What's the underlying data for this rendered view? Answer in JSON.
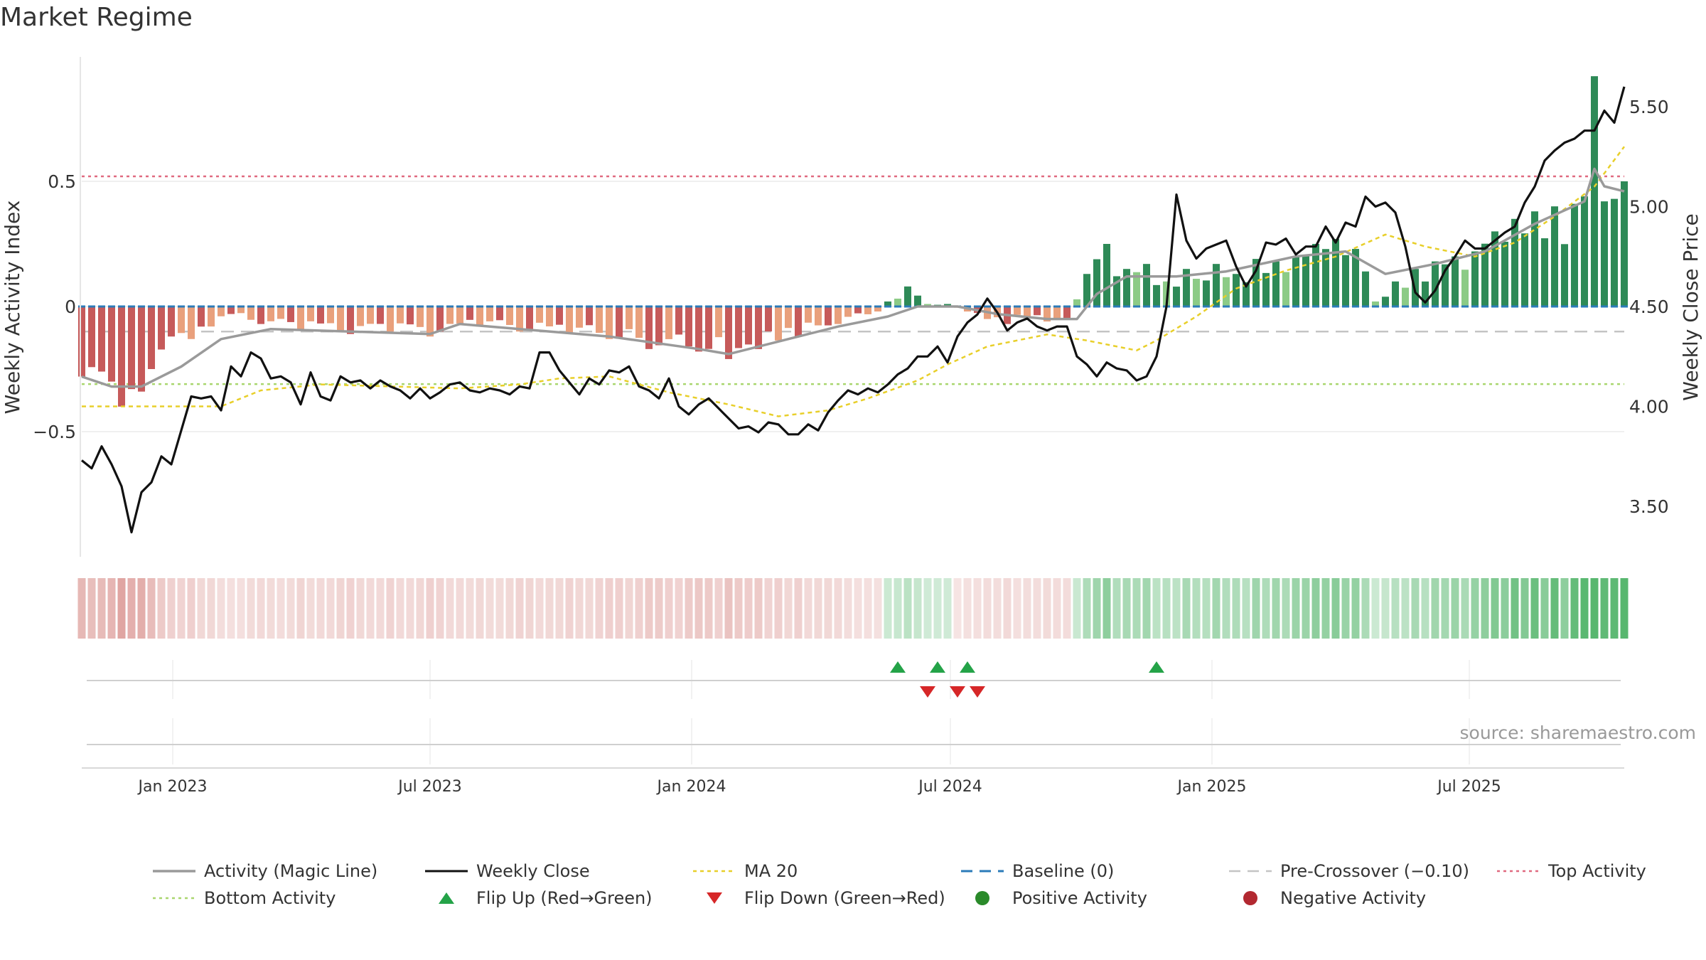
{
  "title": "Market Regime",
  "source": "source: sharemaestro.com",
  "colors": {
    "activity_line": "#9a9a9a",
    "close_line": "#111111",
    "ma20": "#e8cf2a",
    "baseline": "#2b7bb9",
    "pre_crossover": "#c4c4c4",
    "top_activity": "#e06a80",
    "bottom_activity": "#a9d66e",
    "pos_dark": "#2e8a57",
    "pos_light": "#8ccb86",
    "neg_dark": "#c65a5a",
    "neg_light": "#e9a07c",
    "flip_up": "#24a348",
    "flip_down": "#d62728"
  },
  "chart_data": {
    "type": "bar",
    "title": "Market Regime",
    "ylabel_left": "Weekly Activity Index",
    "ylabel_right": "Weekly Close Price",
    "left_ticks": [
      {
        "v": 0.5,
        "label": "0.5"
      },
      {
        "v": 0,
        "label": "0"
      },
      {
        "v": -0.5,
        "label": "−0.5"
      }
    ],
    "right_ticks": [
      {
        "v": 5.5,
        "label": "5.50"
      },
      {
        "v": 5.0,
        "label": "5.00"
      },
      {
        "v": 4.5,
        "label": "4.50"
      },
      {
        "v": 4.0,
        "label": "4.00"
      },
      {
        "v": 3.5,
        "label": "3.50"
      }
    ],
    "x_ticks": [
      {
        "date": "2023-01-01",
        "label": "Jan 2023"
      },
      {
        "date": "2023-07-01",
        "label": "Jul 2023"
      },
      {
        "date": "2024-01-01",
        "label": "Jan 2024"
      },
      {
        "date": "2024-07-01",
        "label": "Jul 2024"
      },
      {
        "date": "2025-01-01",
        "label": "Jan 2025"
      },
      {
        "date": "2025-07-01",
        "label": "Jul 2025"
      }
    ],
    "date_range": [
      "2022-10-29",
      "2025-10-18"
    ],
    "reference_lines": {
      "top_activity": 0.52,
      "bottom_activity": -0.31,
      "pre_crossover": -0.1,
      "baseline": 0
    },
    "activity_anchors": [
      [
        "2022-10-29",
        -0.28
      ],
      [
        "2022-11-12",
        -0.26
      ],
      [
        "2022-11-19",
        -0.3
      ],
      [
        "2022-11-26",
        -0.4
      ],
      [
        "2022-12-03",
        -0.33
      ],
      [
        "2022-12-10",
        -0.34
      ],
      [
        "2022-12-17",
        -0.25
      ],
      [
        "2022-12-31",
        -0.12
      ],
      [
        "2023-01-14",
        -0.13
      ],
      [
        "2023-01-28",
        -0.08
      ],
      [
        "2023-02-11",
        -0.03
      ],
      [
        "2023-03-04",
        -0.07
      ],
      [
        "2023-04-01",
        -0.09
      ],
      [
        "2023-05-06",
        -0.11
      ],
      [
        "2023-06-03",
        -0.1
      ],
      [
        "2023-07-01",
        -0.12
      ],
      [
        "2023-08-05",
        -0.08
      ],
      [
        "2023-09-02",
        -0.1
      ],
      [
        "2023-10-07",
        -0.11
      ],
      [
        "2023-11-04",
        -0.13
      ],
      [
        "2023-12-02",
        -0.17
      ],
      [
        "2024-01-06",
        -0.18
      ],
      [
        "2024-01-27",
        -0.21
      ],
      [
        "2024-02-17",
        -0.17
      ],
      [
        "2024-03-16",
        -0.12
      ],
      [
        "2024-04-13",
        -0.07
      ],
      [
        "2024-05-11",
        -0.02
      ],
      [
        "2024-05-18",
        0.02
      ],
      [
        "2024-06-01",
        0.08
      ],
      [
        "2024-06-15",
        0.01
      ],
      [
        "2024-06-29",
        0.01
      ],
      [
        "2024-07-13",
        -0.02
      ],
      [
        "2024-07-27",
        -0.05
      ],
      [
        "2024-08-10",
        -0.07
      ],
      [
        "2024-08-24",
        -0.04
      ],
      [
        "2024-09-07",
        -0.06
      ],
      [
        "2024-09-21",
        -0.05
      ],
      [
        "2024-10-05",
        0.13
      ],
      [
        "2024-10-19",
        0.25
      ],
      [
        "2024-11-02",
        0.15
      ],
      [
        "2024-11-16",
        0.17
      ],
      [
        "2024-11-30",
        0.1
      ],
      [
        "2024-12-14",
        0.15
      ],
      [
        "2025-01-04",
        0.17
      ],
      [
        "2025-01-18",
        0.13
      ],
      [
        "2025-02-01",
        0.19
      ],
      [
        "2025-02-15",
        0.18
      ],
      [
        "2025-03-01",
        0.2
      ],
      [
        "2025-03-15",
        0.25
      ],
      [
        "2025-03-29",
        0.27
      ],
      [
        "2025-04-12",
        0.23
      ],
      [
        "2025-04-19",
        0.14
      ],
      [
        "2025-04-26",
        0.02
      ],
      [
        "2025-05-10",
        0.1
      ],
      [
        "2025-05-24",
        0.15
      ],
      [
        "2025-06-07",
        0.18
      ],
      [
        "2025-06-21",
        0.2
      ],
      [
        "2025-07-05",
        0.22
      ],
      [
        "2025-07-19",
        0.3
      ],
      [
        "2025-08-02",
        0.35
      ],
      [
        "2025-08-16",
        0.38
      ],
      [
        "2025-08-30",
        0.4
      ],
      [
        "2025-09-13",
        0.41
      ],
      [
        "2025-09-20",
        0.44
      ],
      [
        "2025-09-27",
        0.92
      ],
      [
        "2025-10-04",
        0.42
      ],
      [
        "2025-10-11",
        0.43
      ],
      [
        "2025-10-18",
        0.5
      ]
    ],
    "magic_line": [
      [
        "2022-10-29",
        -0.28
      ],
      [
        "2022-11-19",
        -0.32
      ],
      [
        "2022-12-10",
        -0.32
      ],
      [
        "2023-01-07",
        -0.24
      ],
      [
        "2023-02-04",
        -0.13
      ],
      [
        "2023-03-11",
        -0.09
      ],
      [
        "2023-05-06",
        -0.1
      ],
      [
        "2023-07-01",
        -0.11
      ],
      [
        "2023-07-22",
        -0.07
      ],
      [
        "2023-09-02",
        -0.09
      ],
      [
        "2023-11-04",
        -0.12
      ],
      [
        "2024-01-06",
        -0.17
      ],
      [
        "2024-01-27",
        -0.19
      ],
      [
        "2024-03-02",
        -0.14
      ],
      [
        "2024-04-13",
        -0.08
      ],
      [
        "2024-05-18",
        -0.04
      ],
      [
        "2024-06-08",
        0.0
      ],
      [
        "2024-07-06",
        0.0
      ],
      [
        "2024-08-03",
        -0.03
      ],
      [
        "2024-09-07",
        -0.05
      ],
      [
        "2024-09-28",
        -0.05
      ],
      [
        "2024-10-12",
        0.05
      ],
      [
        "2024-11-02",
        0.12
      ],
      [
        "2024-12-07",
        0.12
      ],
      [
        "2025-01-11",
        0.14
      ],
      [
        "2025-03-01",
        0.2
      ],
      [
        "2025-04-05",
        0.22
      ],
      [
        "2025-05-03",
        0.13
      ],
      [
        "2025-06-07",
        0.17
      ],
      [
        "2025-07-12",
        0.22
      ],
      [
        "2025-08-16",
        0.33
      ],
      [
        "2025-09-20",
        0.42
      ],
      [
        "2025-09-27",
        0.55
      ],
      [
        "2025-10-04",
        0.48
      ],
      [
        "2025-10-18",
        0.46
      ]
    ],
    "weekly_close": [
      [
        "2022-10-29",
        3.73
      ],
      [
        "2022-11-05",
        3.69
      ],
      [
        "2022-11-12",
        3.8
      ],
      [
        "2022-11-19",
        3.71
      ],
      [
        "2022-11-26",
        3.6
      ],
      [
        "2022-12-03",
        3.37
      ],
      [
        "2022-12-10",
        3.57
      ],
      [
        "2022-12-17",
        3.62
      ],
      [
        "2022-12-24",
        3.75
      ],
      [
        "2022-12-31",
        3.71
      ],
      [
        "2023-01-07",
        3.88
      ],
      [
        "2023-01-14",
        4.05
      ],
      [
        "2023-01-21",
        4.04
      ],
      [
        "2023-01-28",
        4.05
      ],
      [
        "2023-02-04",
        3.98
      ],
      [
        "2023-02-11",
        4.2
      ],
      [
        "2023-02-18",
        4.15
      ],
      [
        "2023-02-25",
        4.27
      ],
      [
        "2023-03-04",
        4.24
      ],
      [
        "2023-03-11",
        4.14
      ],
      [
        "2023-03-18",
        4.15
      ],
      [
        "2023-03-25",
        4.12
      ],
      [
        "2023-04-01",
        4.01
      ],
      [
        "2023-04-08",
        4.17
      ],
      [
        "2023-04-15",
        4.05
      ],
      [
        "2023-04-22",
        4.03
      ],
      [
        "2023-04-29",
        4.15
      ],
      [
        "2023-05-06",
        4.12
      ],
      [
        "2023-05-13",
        4.13
      ],
      [
        "2023-05-20",
        4.09
      ],
      [
        "2023-05-27",
        4.13
      ],
      [
        "2023-06-03",
        4.1
      ],
      [
        "2023-06-10",
        4.08
      ],
      [
        "2023-06-17",
        4.04
      ],
      [
        "2023-06-24",
        4.09
      ],
      [
        "2023-07-01",
        4.04
      ],
      [
        "2023-07-08",
        4.07
      ],
      [
        "2023-07-15",
        4.11
      ],
      [
        "2023-07-22",
        4.12
      ],
      [
        "2023-07-29",
        4.08
      ],
      [
        "2023-08-05",
        4.07
      ],
      [
        "2023-08-12",
        4.09
      ],
      [
        "2023-08-19",
        4.08
      ],
      [
        "2023-08-26",
        4.06
      ],
      [
        "2023-09-02",
        4.1
      ],
      [
        "2023-09-09",
        4.09
      ],
      [
        "2023-09-16",
        4.27
      ],
      [
        "2023-09-23",
        4.27
      ],
      [
        "2023-09-30",
        4.18
      ],
      [
        "2023-10-07",
        4.12
      ],
      [
        "2023-10-14",
        4.06
      ],
      [
        "2023-10-21",
        4.14
      ],
      [
        "2023-10-28",
        4.11
      ],
      [
        "2023-11-04",
        4.18
      ],
      [
        "2023-11-11",
        4.17
      ],
      [
        "2023-11-18",
        4.2
      ],
      [
        "2023-11-25",
        4.1
      ],
      [
        "2023-12-02",
        4.08
      ],
      [
        "2023-12-09",
        4.04
      ],
      [
        "2023-12-16",
        4.14
      ],
      [
        "2023-12-23",
        4.0
      ],
      [
        "2023-12-30",
        3.96
      ],
      [
        "2024-01-06",
        4.01
      ],
      [
        "2024-01-13",
        4.04
      ],
      [
        "2024-01-20",
        3.99
      ],
      [
        "2024-01-27",
        3.94
      ],
      [
        "2024-02-03",
        3.89
      ],
      [
        "2024-02-10",
        3.9
      ],
      [
        "2024-02-17",
        3.87
      ],
      [
        "2024-02-24",
        3.92
      ],
      [
        "2024-03-02",
        3.91
      ],
      [
        "2024-03-09",
        3.86
      ],
      [
        "2024-03-16",
        3.86
      ],
      [
        "2024-03-23",
        3.91
      ],
      [
        "2024-03-30",
        3.88
      ],
      [
        "2024-04-06",
        3.97
      ],
      [
        "2024-04-13",
        4.03
      ],
      [
        "2024-04-20",
        4.08
      ],
      [
        "2024-04-27",
        4.06
      ],
      [
        "2024-05-04",
        4.09
      ],
      [
        "2024-05-11",
        4.07
      ],
      [
        "2024-05-18",
        4.11
      ],
      [
        "2024-05-25",
        4.16
      ],
      [
        "2024-06-01",
        4.19
      ],
      [
        "2024-06-08",
        4.25
      ],
      [
        "2024-06-15",
        4.25
      ],
      [
        "2024-06-22",
        4.3
      ],
      [
        "2024-06-29",
        4.22
      ],
      [
        "2024-07-06",
        4.35
      ],
      [
        "2024-07-13",
        4.42
      ],
      [
        "2024-07-20",
        4.46
      ],
      [
        "2024-07-27",
        4.54
      ],
      [
        "2024-08-03",
        4.47
      ],
      [
        "2024-08-10",
        4.38
      ],
      [
        "2024-08-17",
        4.42
      ],
      [
        "2024-08-24",
        4.44
      ],
      [
        "2024-08-31",
        4.4
      ],
      [
        "2024-09-07",
        4.38
      ],
      [
        "2024-09-14",
        4.4
      ],
      [
        "2024-09-21",
        4.4
      ],
      [
        "2024-09-28",
        4.25
      ],
      [
        "2024-10-05",
        4.21
      ],
      [
        "2024-10-12",
        4.15
      ],
      [
        "2024-10-19",
        4.22
      ],
      [
        "2024-10-26",
        4.19
      ],
      [
        "2024-11-02",
        4.18
      ],
      [
        "2024-11-09",
        4.13
      ],
      [
        "2024-11-16",
        4.15
      ],
      [
        "2024-11-23",
        4.25
      ],
      [
        "2024-11-30",
        4.5
      ],
      [
        "2024-12-07",
        5.06
      ],
      [
        "2024-12-14",
        4.83
      ],
      [
        "2024-12-21",
        4.74
      ],
      [
        "2024-12-28",
        4.79
      ],
      [
        "2025-01-04",
        4.81
      ],
      [
        "2025-01-11",
        4.83
      ],
      [
        "2025-01-18",
        4.7
      ],
      [
        "2025-01-25",
        4.6
      ],
      [
        "2025-02-01",
        4.68
      ],
      [
        "2025-02-08",
        4.82
      ],
      [
        "2025-02-15",
        4.81
      ],
      [
        "2025-02-22",
        4.84
      ],
      [
        "2025-03-01",
        4.76
      ],
      [
        "2025-03-08",
        4.8
      ],
      [
        "2025-03-15",
        4.8
      ],
      [
        "2025-03-22",
        4.9
      ],
      [
        "2025-03-29",
        4.82
      ],
      [
        "2025-04-05",
        4.92
      ],
      [
        "2025-04-12",
        4.9
      ],
      [
        "2025-04-19",
        5.05
      ],
      [
        "2025-04-26",
        5.0
      ],
      [
        "2025-05-03",
        5.02
      ],
      [
        "2025-05-10",
        4.97
      ],
      [
        "2025-05-17",
        4.8
      ],
      [
        "2025-05-24",
        4.57
      ],
      [
        "2025-05-31",
        4.52
      ],
      [
        "2025-06-07",
        4.58
      ],
      [
        "2025-06-14",
        4.68
      ],
      [
        "2025-06-21",
        4.75
      ],
      [
        "2025-06-28",
        4.83
      ],
      [
        "2025-07-05",
        4.79
      ],
      [
        "2025-07-12",
        4.79
      ],
      [
        "2025-07-19",
        4.83
      ],
      [
        "2025-07-26",
        4.87
      ],
      [
        "2025-08-02",
        4.9
      ],
      [
        "2025-08-09",
        5.02
      ],
      [
        "2025-08-16",
        5.1
      ],
      [
        "2025-08-23",
        5.23
      ],
      [
        "2025-08-30",
        5.28
      ],
      [
        "2025-09-06",
        5.32
      ],
      [
        "2025-09-13",
        5.34
      ],
      [
        "2025-09-20",
        5.38
      ],
      [
        "2025-09-27",
        5.38
      ],
      [
        "2025-10-04",
        5.48
      ],
      [
        "2025-10-11",
        5.42
      ],
      [
        "2025-10-18",
        5.6
      ]
    ],
    "ma20": [
      [
        "2022-10-29",
        4.0
      ],
      [
        "2023-02-04",
        4.0
      ],
      [
        "2023-03-04",
        4.08
      ],
      [
        "2023-04-15",
        4.11
      ],
      [
        "2023-06-03",
        4.1
      ],
      [
        "2023-07-22",
        4.09
      ],
      [
        "2023-09-02",
        4.11
      ],
      [
        "2023-09-30",
        4.14
      ],
      [
        "2023-11-04",
        4.15
      ],
      [
        "2023-12-16",
        4.07
      ],
      [
        "2024-01-27",
        4.01
      ],
      [
        "2024-03-02",
        3.95
      ],
      [
        "2024-04-06",
        3.98
      ],
      [
        "2024-05-04",
        4.04
      ],
      [
        "2024-06-08",
        4.13
      ],
      [
        "2024-06-29",
        4.21
      ],
      [
        "2024-07-27",
        4.3
      ],
      [
        "2024-09-07",
        4.36
      ],
      [
        "2024-10-05",
        4.33
      ],
      [
        "2024-11-09",
        4.28
      ],
      [
        "2024-11-23",
        4.33
      ],
      [
        "2024-12-21",
        4.45
      ],
      [
        "2025-01-18",
        4.59
      ],
      [
        "2025-02-22",
        4.68
      ],
      [
        "2025-03-29",
        4.75
      ],
      [
        "2025-05-03",
        4.86
      ],
      [
        "2025-05-31",
        4.8
      ],
      [
        "2025-07-05",
        4.75
      ],
      [
        "2025-08-02",
        4.82
      ],
      [
        "2025-08-30",
        4.95
      ],
      [
        "2025-09-27",
        5.1
      ],
      [
        "2025-10-18",
        5.3
      ]
    ],
    "flip_up": [
      "2024-05-25",
      "2024-06-22",
      "2024-07-13",
      "2024-11-23"
    ],
    "flip_down": [
      "2024-06-15",
      "2024-07-06",
      "2024-07-20"
    ]
  },
  "legend": [
    {
      "key": "activity",
      "label": "Activity (Magic Line)"
    },
    {
      "key": "close",
      "label": "Weekly Close"
    },
    {
      "key": "ma20",
      "label": "MA 20"
    },
    {
      "key": "baseline",
      "label": "Baseline (0)"
    },
    {
      "key": "precross",
      "label": "Pre-Crossover (−0.10)"
    },
    {
      "key": "top",
      "label": "Top Activity"
    },
    {
      "key": "bottom",
      "label": "Bottom Activity"
    },
    {
      "key": "flipup",
      "label": "Flip Up (Red→Green)"
    },
    {
      "key": "flipdown",
      "label": "Flip Down (Green→Red)"
    },
    {
      "key": "posdot",
      "label": "Positive Activity"
    },
    {
      "key": "negdot",
      "label": "Negative Activity"
    }
  ]
}
